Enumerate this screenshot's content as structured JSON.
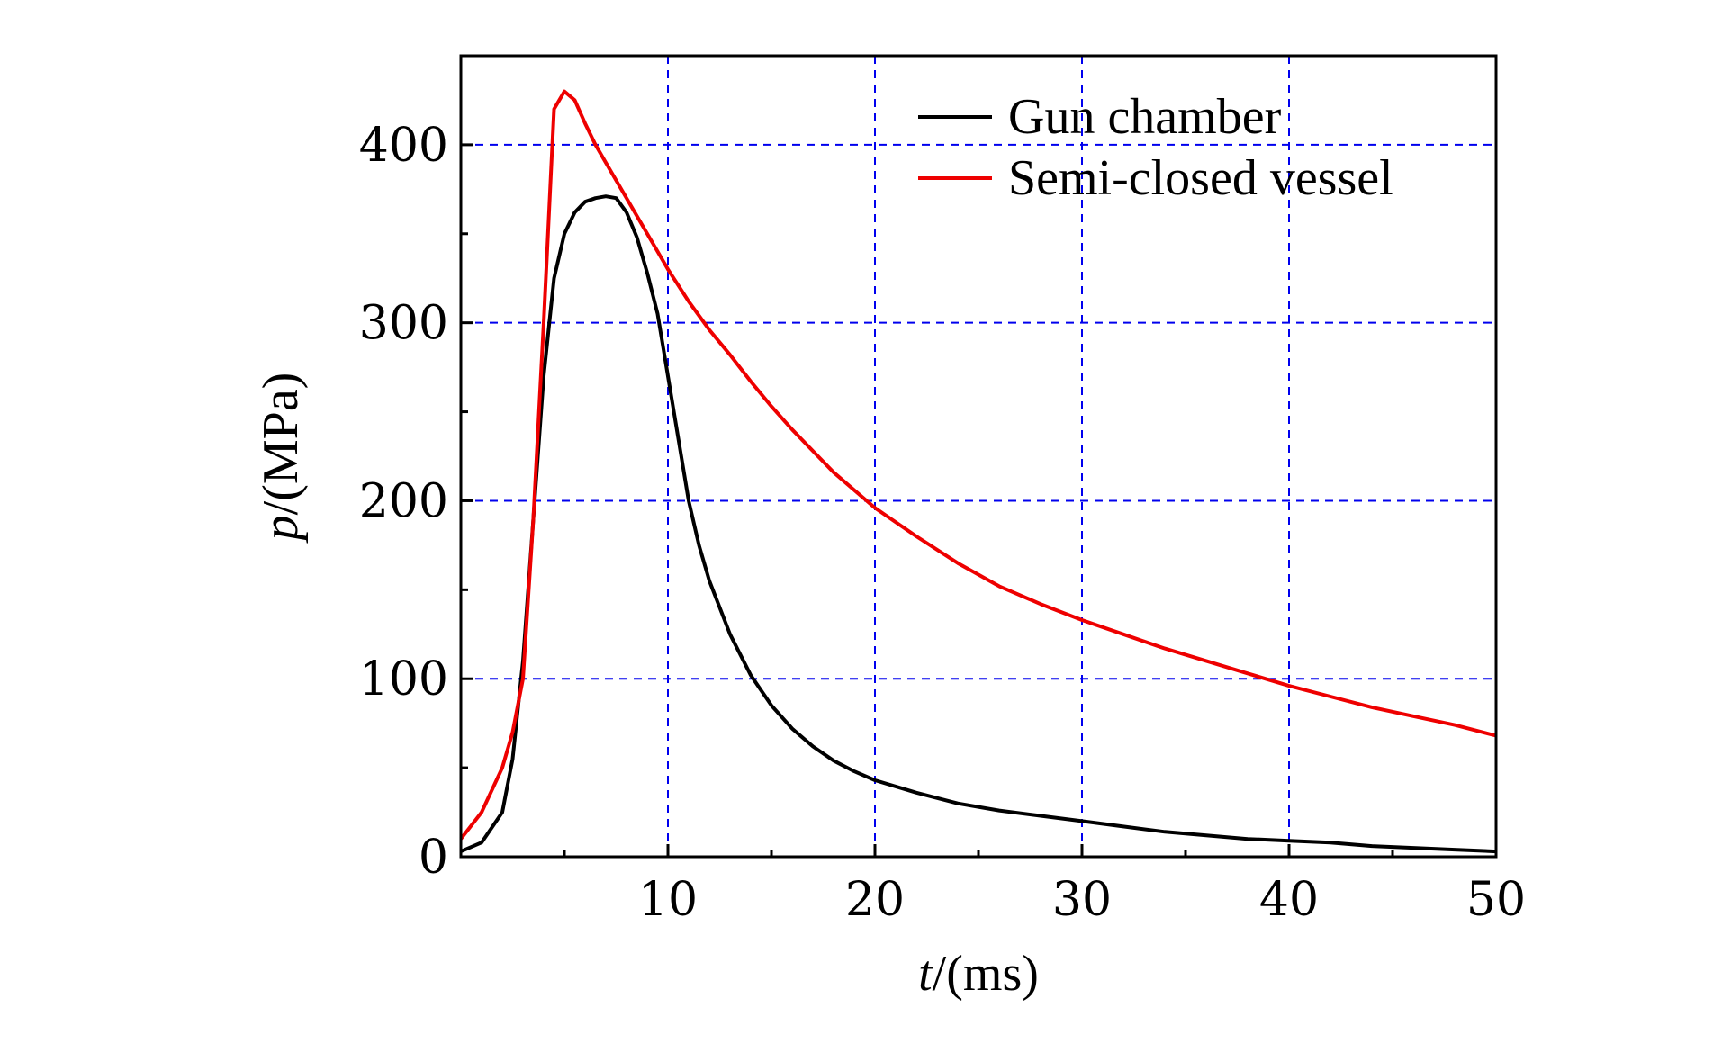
{
  "chart_data": {
    "type": "line",
    "title": "",
    "xlabel_var": "t",
    "xlabel_unit": "/(ms)",
    "ylabel_var": "p",
    "ylabel_unit": "/(MPa)",
    "xlim": [
      0,
      50
    ],
    "ylim": [
      0,
      450
    ],
    "xticks": [
      10,
      20,
      30,
      40,
      50
    ],
    "yticks": [
      0,
      100,
      200,
      300,
      400
    ],
    "xtick_labels": [
      "10",
      "20",
      "30",
      "40",
      "50"
    ],
    "ytick_labels": [
      "0",
      "100",
      "200",
      "300",
      "400"
    ],
    "grid": true,
    "grid_color": "#0000ee",
    "legend_position": "top-right",
    "series": [
      {
        "name": "Gun chamber",
        "color": "#000000",
        "x": [
          0,
          1,
          2,
          2.5,
          3,
          3.5,
          4,
          4.5,
          5,
          5.5,
          6,
          6.5,
          7,
          7.5,
          8,
          8.5,
          9,
          9.5,
          10,
          10.5,
          11,
          11.5,
          12,
          13,
          14,
          15,
          16,
          17,
          18,
          19,
          20,
          22,
          24,
          26,
          28,
          30,
          32,
          34,
          36,
          38,
          40,
          42,
          44,
          46,
          48,
          50
        ],
        "y": [
          3,
          8,
          25,
          55,
          110,
          190,
          270,
          325,
          350,
          362,
          368,
          370,
          371,
          370,
          362,
          348,
          328,
          305,
          270,
          235,
          200,
          175,
          155,
          125,
          102,
          85,
          72,
          62,
          54,
          48,
          43,
          36,
          30,
          26,
          23,
          20,
          17,
          14,
          12,
          10,
          9,
          8,
          6,
          5,
          4,
          3
        ]
      },
      {
        "name": "Semi-closed vessel",
        "color": "#ee0000",
        "x": [
          0,
          1,
          2,
          2.5,
          3,
          3.5,
          4,
          4.5,
          5,
          5.5,
          6,
          6.5,
          7,
          8,
          9,
          10,
          11,
          12,
          13,
          14,
          15,
          16,
          17,
          18,
          19,
          20,
          22,
          24,
          26,
          28,
          30,
          32,
          34,
          36,
          38,
          40,
          42,
          44,
          46,
          48,
          50
        ],
        "y": [
          10,
          25,
          50,
          70,
          100,
          190,
          300,
          420,
          430,
          425,
          412,
          400,
          390,
          370,
          350,
          330,
          312,
          296,
          282,
          267,
          253,
          240,
          228,
          216,
          206,
          196,
          180,
          165,
          152,
          142,
          133,
          125,
          117,
          110,
          103,
          96,
          90,
          84,
          79,
          74,
          68
        ]
      }
    ]
  }
}
